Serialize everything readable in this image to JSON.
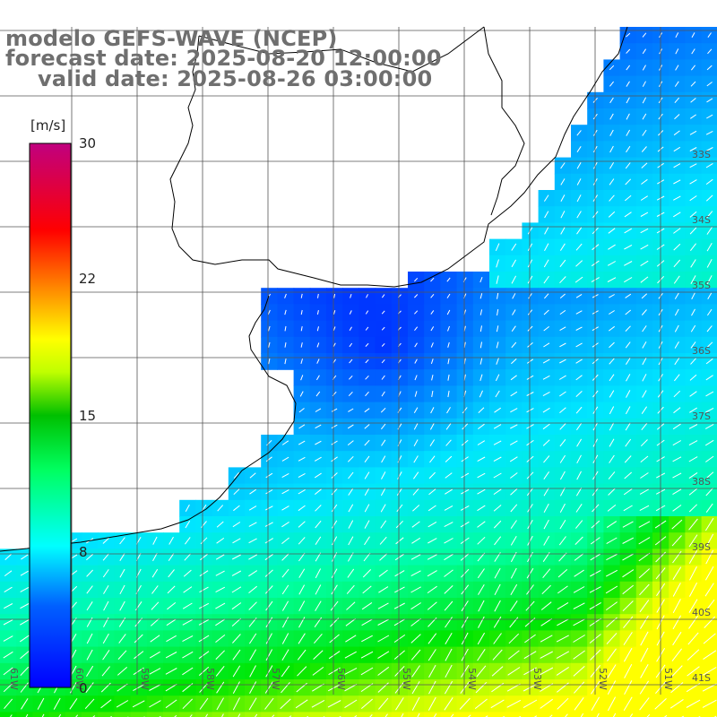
{
  "title": {
    "line1": "modelo GEFS-WAVE (NCEP)",
    "line2": "forecast date: 2025-08-20 12:00:00",
    "line3": "valid date: 2025-08-26 03:00:00"
  },
  "colorbar": {
    "units": "[m/s]",
    "ticks": [
      "30",
      "22",
      "15",
      "8",
      "0"
    ],
    "tick_values": [
      30,
      22,
      15,
      8,
      0
    ],
    "min": 0,
    "max": 30,
    "colors": [
      "#0000ff",
      "#0080ff",
      "#00ffff",
      "#00ff00",
      "#ffff00",
      "#ff8000",
      "#ff0000",
      "#c0007f"
    ]
  },
  "map": {
    "lat_labels": [
      "33S",
      "34S",
      "35S",
      "36S",
      "37S",
      "38S",
      "39S",
      "40S",
      "41S"
    ],
    "lon_labels": [
      "61W",
      "60W",
      "59W",
      "58W",
      "57W",
      "56W",
      "55W",
      "54W",
      "53W",
      "52W",
      "51W"
    ],
    "land_color": "#ffffff",
    "grid_color": "#555555",
    "vector_color": "#ffffff"
  }
}
